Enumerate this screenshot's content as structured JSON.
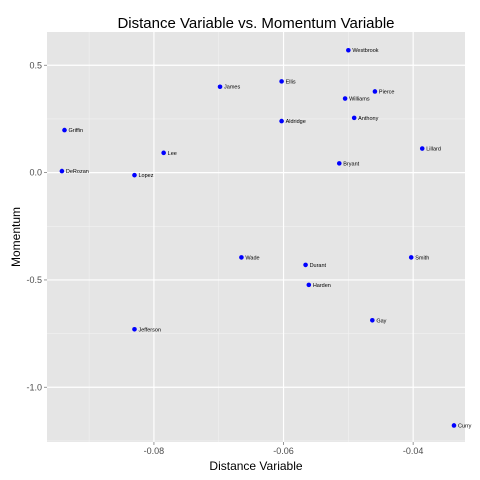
{
  "chart_data": {
    "type": "scatter",
    "title": "Distance Variable vs. Momentum Variable",
    "xlabel": "Distance Variable",
    "ylabel": "Momentum",
    "xlim": [
      -0.0965,
      -0.032
    ],
    "ylim": [
      -1.255,
      0.655
    ],
    "xticks": [
      -0.08,
      -0.06,
      -0.04
    ],
    "xtick_labels": [
      "-0.08",
      "-0.06",
      "-0.04"
    ],
    "yticks": [
      -1.0,
      -0.5,
      0.0,
      0.5
    ],
    "ytick_labels": [
      "-1.0",
      "-0.5",
      "0.0",
      "0.5"
    ],
    "grid": true,
    "point_color": "#0000ff",
    "panel_color": "#e5e5e5",
    "points": [
      {
        "label": "Westbrook",
        "x": -0.05,
        "y": 0.57
      },
      {
        "label": "Ellis",
        "x": -0.0603,
        "y": 0.425
      },
      {
        "label": "James",
        "x": -0.0698,
        "y": 0.4
      },
      {
        "label": "Pierce",
        "x": -0.0459,
        "y": 0.378
      },
      {
        "label": "Williams",
        "x": -0.0505,
        "y": 0.345
      },
      {
        "label": "Anthony",
        "x": -0.0491,
        "y": 0.255
      },
      {
        "label": "Aldridge",
        "x": -0.0603,
        "y": 0.24
      },
      {
        "label": "Griffin",
        "x": -0.0938,
        "y": 0.198
      },
      {
        "label": "Lillard",
        "x": -0.0386,
        "y": 0.112
      },
      {
        "label": "Lee",
        "x": -0.0785,
        "y": 0.092
      },
      {
        "label": "Bryant",
        "x": -0.0514,
        "y": 0.043
      },
      {
        "label": "DeRozan",
        "x": -0.0942,
        "y": 0.007
      },
      {
        "label": "Lopez",
        "x": -0.083,
        "y": -0.012
      },
      {
        "label": "Wade",
        "x": -0.0665,
        "y": -0.395
      },
      {
        "label": "Smith",
        "x": -0.0403,
        "y": -0.395
      },
      {
        "label": "Durant",
        "x": -0.0566,
        "y": -0.43
      },
      {
        "label": "Harden",
        "x": -0.0561,
        "y": -0.523
      },
      {
        "label": "Gay",
        "x": -0.0463,
        "y": -0.688
      },
      {
        "label": "Jefferson",
        "x": -0.083,
        "y": -0.73
      },
      {
        "label": "Curry",
        "x": -0.0337,
        "y": -1.178
      }
    ]
  }
}
